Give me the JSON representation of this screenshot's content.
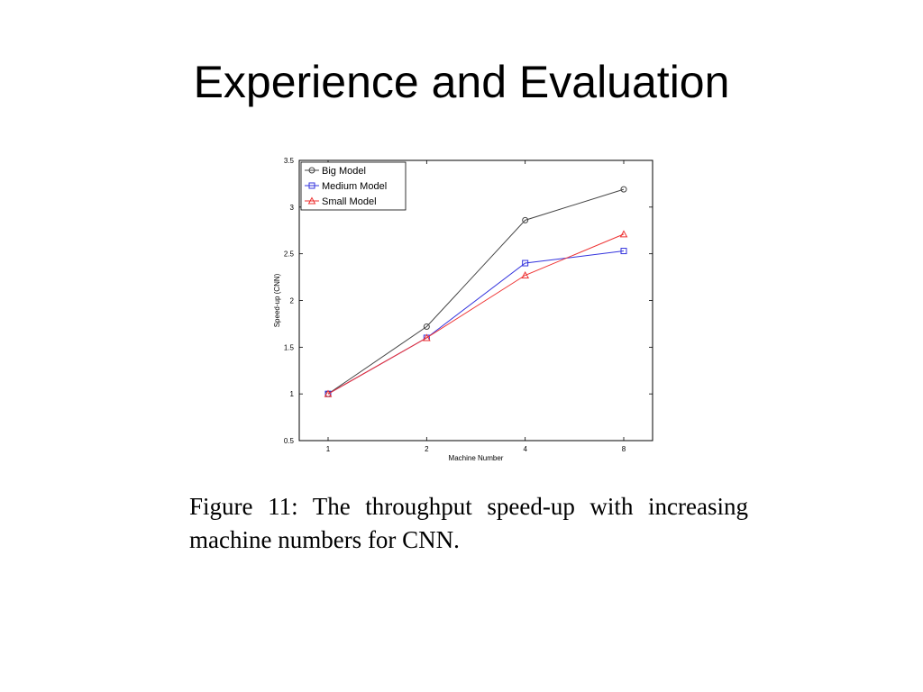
{
  "slide": {
    "title": "Experience and Evaluation"
  },
  "caption": {
    "text": "Figure 11:  The throughput speed-up with increasing machine numbers for CNN."
  },
  "chart_data": {
    "type": "line",
    "categories": [
      "1",
      "2",
      "4",
      "8"
    ],
    "xlabel": "Machine Number",
    "ylabel": "Speed-up (CNN)",
    "ylim": [
      0.5,
      3.5
    ],
    "yticks": [
      "0.5",
      "1",
      "1.5",
      "2",
      "2.5",
      "3",
      "3.5"
    ],
    "legend_position": "top-left",
    "grid": false,
    "series": [
      {
        "name": "Big Model",
        "values": [
          1.0,
          1.72,
          2.86,
          3.19
        ],
        "color": "#444444",
        "marker": "circle"
      },
      {
        "name": "Medium Model",
        "values": [
          1.0,
          1.6,
          2.4,
          2.53
        ],
        "color": "#3333dd",
        "marker": "square"
      },
      {
        "name": "Small Model",
        "values": [
          1.0,
          1.6,
          2.27,
          2.71
        ],
        "color": "#ee3333",
        "marker": "triangle"
      }
    ]
  }
}
